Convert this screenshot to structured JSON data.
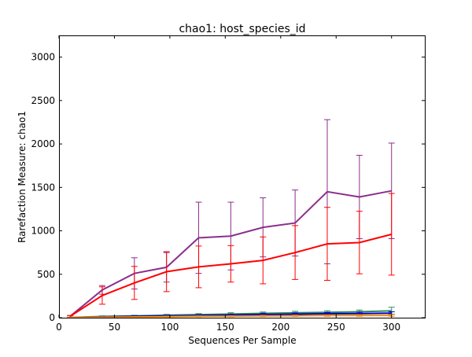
{
  "chart_data": {
    "type": "line",
    "title": "chao1: host_species_id",
    "xlabel": "Sequences Per Sample",
    "ylabel": "Rarefaction Measure: chao1",
    "xlim": [
      0,
      330
    ],
    "ylim": [
      0,
      3250
    ],
    "xticks": [
      0,
      50,
      100,
      150,
      200,
      250,
      300
    ],
    "yticks": [
      0,
      500,
      1000,
      1500,
      2000,
      2500,
      3000
    ],
    "grid": false,
    "x": [
      10,
      39,
      68,
      97,
      126,
      155,
      184,
      213,
      242,
      271,
      300
    ],
    "series": [
      {
        "color": "#8b2f8b",
        "values": [
          15,
          320,
          510,
          580,
          920,
          940,
          1040,
          1090,
          1450,
          1390,
          1460
        ],
        "err": [
          10,
          50,
          180,
          170,
          410,
          390,
          340,
          380,
          830,
          480,
          550
        ]
      },
      {
        "color": "#ff0000",
        "values": [
          15,
          255,
          400,
          530,
          585,
          620,
          660,
          750,
          850,
          865,
          960
        ],
        "err": [
          10,
          100,
          190,
          230,
          240,
          210,
          270,
          310,
          420,
          360,
          470
        ]
      },
      {
        "color": "#2e8b57",
        "values": [
          3,
          14,
          20,
          28,
          35,
          42,
          50,
          55,
          62,
          68,
          80
        ],
        "err": [
          2,
          6,
          8,
          10,
          12,
          15,
          15,
          18,
          18,
          20,
          40
        ]
      },
      {
        "color": "#0000cc",
        "values": [
          3,
          10,
          15,
          20,
          25,
          30,
          36,
          40,
          45,
          48,
          52
        ],
        "err": [
          2,
          5,
          6,
          8,
          9,
          10,
          12,
          13,
          14,
          15,
          16
        ]
      },
      {
        "color": "#ff8c00",
        "values": [
          2,
          5,
          8,
          12,
          15,
          17,
          20,
          22,
          24,
          25,
          26
        ],
        "err": [
          1,
          3,
          4,
          5,
          6,
          7,
          8,
          8,
          9,
          10,
          10
        ]
      }
    ]
  }
}
